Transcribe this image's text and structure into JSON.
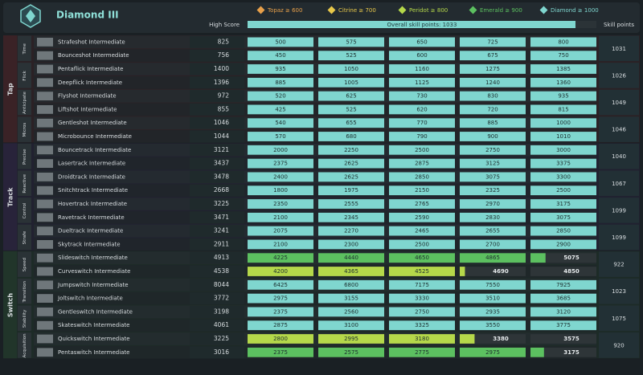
{
  "header": {
    "title": "Diamond III",
    "ranks": [
      {
        "label": "Topaz ≥ 600",
        "color": "#e8a04a"
      },
      {
        "label": "Citrine ≥ 700",
        "color": "#e8c84a"
      },
      {
        "label": "Peridot ≥ 800",
        "color": "#b5d84a"
      },
      {
        "label": "Emerald ≥ 900",
        "color": "#5cc060"
      },
      {
        "label": "Diamond ≥ 1000",
        "color": "#7fd6cf"
      }
    ],
    "high_score_label": "High Score",
    "overall": "Overall skill points: 1033",
    "skill_points_label": "Skill points"
  },
  "groups": [
    {
      "label": "Tap",
      "subgroups": [
        {
          "label": "Time",
          "skill_points": 1031,
          "scenarios": [
            {
              "name": "Strafeshot Intermediate",
              "high_score": 825,
              "thresholds": [
                500,
                575,
                650,
                725,
                800
              ]
            },
            {
              "name": "Bounceshot Intermediate",
              "high_score": 756,
              "thresholds": [
                450,
                525,
                600,
                675,
                750
              ]
            }
          ]
        },
        {
          "label": "Flick",
          "skill_points": 1026,
          "scenarios": [
            {
              "name": "Pentaflick Intermediate",
              "high_score": 1400,
              "thresholds": [
                935,
                1050,
                1160,
                1275,
                1385
              ]
            },
            {
              "name": "Deepflick Intermediate",
              "high_score": 1396,
              "thresholds": [
                885,
                1005,
                1125,
                1240,
                1360
              ]
            }
          ]
        },
        {
          "label": "Anticipate",
          "skill_points": 1049,
          "scenarios": [
            {
              "name": "Flyshot Intermediate",
              "high_score": 972,
              "thresholds": [
                520,
                625,
                730,
                830,
                935
              ]
            },
            {
              "name": "Liftshot Intermediate",
              "high_score": 855,
              "thresholds": [
                425,
                525,
                620,
                720,
                815
              ]
            }
          ]
        },
        {
          "label": "Micros",
          "skill_points": 1046,
          "scenarios": [
            {
              "name": "Gentleshot Intermediate",
              "high_score": 1046,
              "thresholds": [
                540,
                655,
                770,
                885,
                1000
              ]
            },
            {
              "name": "Microbounce Intermediate",
              "high_score": 1044,
              "thresholds": [
                570,
                680,
                790,
                900,
                1010
              ]
            }
          ]
        }
      ]
    },
    {
      "label": "Track",
      "subgroups": [
        {
          "label": "Precise",
          "skill_points": 1040,
          "scenarios": [
            {
              "name": "Bouncetrack Intermediate",
              "high_score": 3121,
              "thresholds": [
                2000,
                2250,
                2500,
                2750,
                3000
              ]
            },
            {
              "name": "Lasertrack Intermediate",
              "high_score": 3437,
              "thresholds": [
                2375,
                2625,
                2875,
                3125,
                3375
              ]
            }
          ]
        },
        {
          "label": "Reactive",
          "skill_points": 1067,
          "scenarios": [
            {
              "name": "Droidtrack Intermediate",
              "high_score": 3478,
              "thresholds": [
                2400,
                2625,
                2850,
                3075,
                3300
              ]
            },
            {
              "name": "Snitchtrack Intermediate",
              "high_score": 2668,
              "thresholds": [
                1800,
                1975,
                2150,
                2325,
                2500
              ]
            }
          ]
        },
        {
          "label": "Control",
          "skill_points": 1099,
          "scenarios": [
            {
              "name": "Hovertrack Intermediate",
              "high_score": 3225,
              "thresholds": [
                2350,
                2555,
                2765,
                2970,
                3175
              ]
            },
            {
              "name": "Ravetrack Intermediate",
              "high_score": 3471,
              "thresholds": [
                2100,
                2345,
                2590,
                2830,
                3075
              ]
            }
          ]
        },
        {
          "label": "Strafe",
          "skill_points": 1099,
          "scenarios": [
            {
              "name": "Dueltrack Intermediate",
              "high_score": 3241,
              "thresholds": [
                2075,
                2270,
                2465,
                2655,
                2850
              ]
            },
            {
              "name": "Skytrack Intermediate",
              "high_score": 2911,
              "thresholds": [
                2100,
                2300,
                2500,
                2700,
                2900
              ]
            }
          ]
        }
      ]
    },
    {
      "label": "Switch",
      "subgroups": [
        {
          "label": "Speed",
          "skill_points": 922,
          "scenarios": [
            {
              "name": "Slideswitch Intermediate",
              "high_score": 4913,
              "thresholds": [
                4225,
                4440,
                4650,
                4865,
                5075
              ]
            },
            {
              "name": "Curveswitch Intermediate",
              "high_score": 4538,
              "thresholds": [
                4200,
                4365,
                4525,
                4690,
                4850
              ]
            }
          ]
        },
        {
          "label": "Transition",
          "skill_points": 1023,
          "scenarios": [
            {
              "name": "Jumpswitch Intermediate",
              "high_score": 8044,
              "thresholds": [
                6425,
                6800,
                7175,
                7550,
                7925
              ]
            },
            {
              "name": "Joltswitch Intermediate",
              "high_score": 3772,
              "thresholds": [
                2975,
                3155,
                3330,
                3510,
                3685
              ]
            }
          ]
        },
        {
          "label": "Stability",
          "skill_points": 1075,
          "scenarios": [
            {
              "name": "Gentleswitch Intermediate",
              "high_score": 3198,
              "thresholds": [
                2375,
                2560,
                2750,
                2935,
                3120
              ]
            },
            {
              "name": "Skateswitch Intermediate",
              "high_score": 4061,
              "thresholds": [
                2875,
                3100,
                3325,
                3550,
                3775
              ]
            }
          ]
        },
        {
          "label": "Acquisition",
          "skill_points": 920,
          "scenarios": [
            {
              "name": "Quickswitch Intermediate",
              "high_score": 3225,
              "thresholds": [
                2800,
                2995,
                3180,
                3380,
                3575
              ]
            },
            {
              "name": "Pentaswitch Intermediate",
              "high_score": 3016,
              "thresholds": [
                2375,
                2575,
                2775,
                2975,
                3175
              ]
            }
          ]
        }
      ]
    }
  ]
}
